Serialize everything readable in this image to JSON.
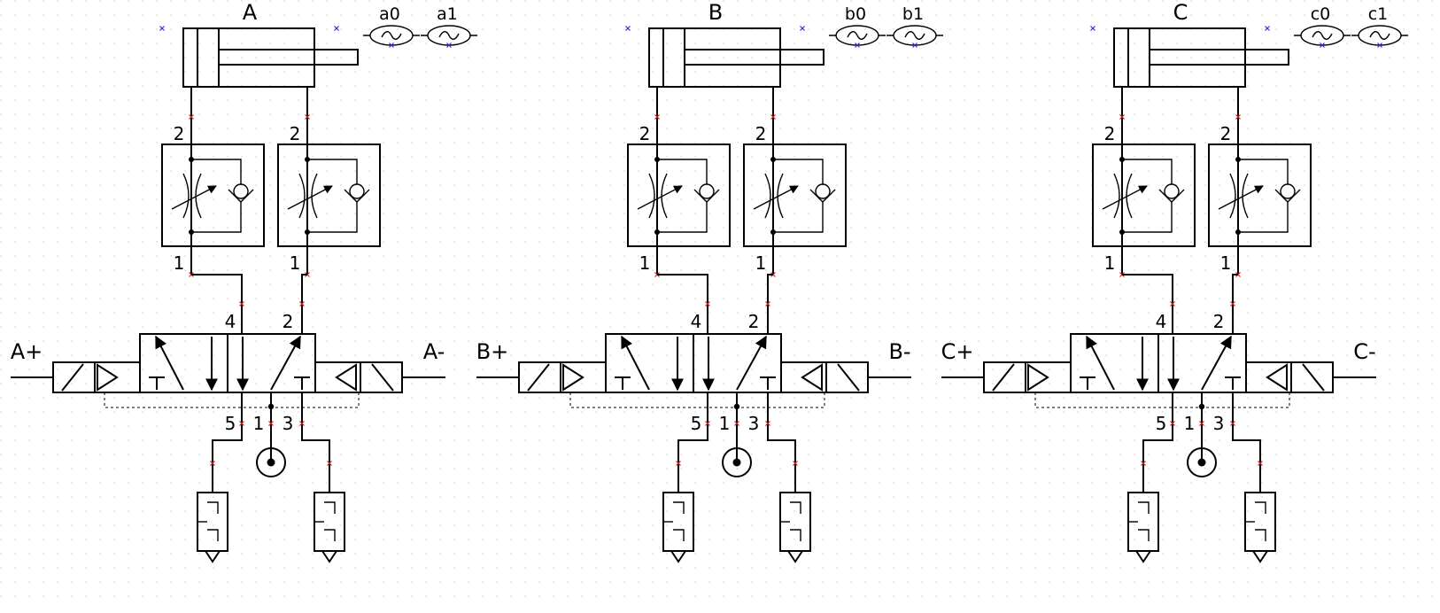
{
  "background": "#ffffff",
  "colors": {
    "line": "#000000",
    "port_marker": "#d02020",
    "anchor_marker": "#3030d0",
    "grid_dot": "#c8c8c8"
  },
  "circuits": [
    {
      "cylinder_label": "A",
      "sensor_labels": [
        "a0",
        "a1"
      ],
      "solenoid_left": "A+",
      "solenoid_right": "A-",
      "flow_valves": [
        {
          "port_top": "2",
          "port_bottom": "1"
        },
        {
          "port_top": "2",
          "port_bottom": "1"
        }
      ],
      "valve_ports": {
        "p4": "4",
        "p2": "2",
        "p5": "5",
        "p1": "1",
        "p3": "3"
      }
    },
    {
      "cylinder_label": "B",
      "sensor_labels": [
        "b0",
        "b1"
      ],
      "solenoid_left": "B+",
      "solenoid_right": "B-",
      "flow_valves": [
        {
          "port_top": "2",
          "port_bottom": "1"
        },
        {
          "port_top": "2",
          "port_bottom": "1"
        }
      ],
      "valve_ports": {
        "p4": "4",
        "p2": "2",
        "p5": "5",
        "p1": "1",
        "p3": "3"
      }
    },
    {
      "cylinder_label": "C",
      "sensor_labels": [
        "c0",
        "c1"
      ],
      "solenoid_left": "C+",
      "solenoid_right": "C-",
      "flow_valves": [
        {
          "port_top": "2",
          "port_bottom": "1"
        },
        {
          "port_top": "2",
          "port_bottom": "1"
        }
      ],
      "valve_ports": {
        "p4": "4",
        "p2": "2",
        "p5": "5",
        "p1": "1",
        "p3": "3"
      }
    }
  ]
}
